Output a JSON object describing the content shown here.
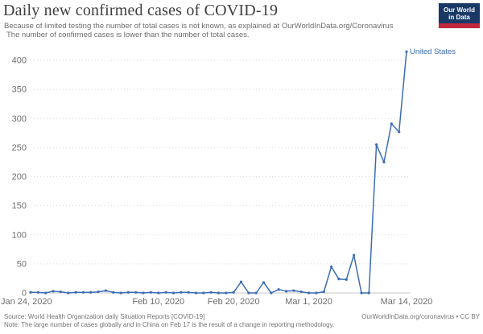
{
  "header": {
    "title": "Daily new confirmed cases of COVID-19",
    "subtitle_line1": "Because of limited testing the number of total cases is not known, as explained at OurWorldInData.org/Coronavirus",
    "subtitle_line2": "The number of confirmed cases is lower than the number of total cases.",
    "logo": {
      "line1": "Our World",
      "line2": "in Data",
      "bg_color": "#1a3866",
      "bar_color": "#c0283c"
    }
  },
  "footer": {
    "source": "Source: World Health Organization daily Situation Reports [COVID-19]",
    "credit": "OurWorldInData.org/coronavirus • CC BY",
    "note": "Note: The large number of cases globally and in China on Feb 17 is the result of a change in reporting methodology."
  },
  "chart_data": {
    "type": "line",
    "title": "Daily new confirmed cases of COVID-19",
    "end_label": "United States",
    "grid": "horizontal dotted",
    "legend": "end-of-line label",
    "ylim": [
      0,
      420
    ],
    "y_ticks": [
      0,
      50,
      100,
      150,
      200,
      250,
      300,
      350,
      400
    ],
    "x_ticks": [
      {
        "label": "Jan 24, 2020",
        "index": 0
      },
      {
        "label": "Feb 10, 2020",
        "index": 17
      },
      {
        "label": "Feb 20, 2020",
        "index": 27
      },
      {
        "label": "Mar 1, 2020",
        "index": 37
      },
      {
        "label": "Mar 14, 2020",
        "index": 50
      }
    ],
    "x": [
      "Jan 24",
      "Jan 25",
      "Jan 26",
      "Jan 27",
      "Jan 28",
      "Jan 29",
      "Jan 30",
      "Jan 31",
      "Feb 1",
      "Feb 2",
      "Feb 3",
      "Feb 4",
      "Feb 5",
      "Feb 6",
      "Feb 7",
      "Feb 8",
      "Feb 9",
      "Feb 10",
      "Feb 11",
      "Feb 12",
      "Feb 13",
      "Feb 14",
      "Feb 15",
      "Feb 16",
      "Feb 17",
      "Feb 18",
      "Feb 19",
      "Feb 20",
      "Feb 21",
      "Feb 22",
      "Feb 23",
      "Feb 24",
      "Feb 25",
      "Feb 26",
      "Feb 27",
      "Feb 28",
      "Feb 29",
      "Mar 1",
      "Mar 2",
      "Mar 3",
      "Mar 4",
      "Mar 5",
      "Mar 6",
      "Mar 7",
      "Mar 8",
      "Mar 9",
      "Mar 10",
      "Mar 11",
      "Mar 12",
      "Mar 13",
      "Mar 14"
    ],
    "series": [
      {
        "name": "United States",
        "color": "#3d6cb4",
        "values": [
          1,
          1,
          0,
          3,
          2,
          0,
          1,
          1,
          1,
          2,
          4,
          1,
          0,
          1,
          1,
          0,
          1,
          0,
          1,
          0,
          1,
          1,
          0,
          0,
          1,
          0,
          0,
          1,
          19,
          0,
          0,
          18,
          0,
          6,
          3,
          4,
          2,
          0,
          0,
          2,
          45,
          24,
          23,
          65,
          0,
          0,
          255,
          225,
          291,
          277,
          415
        ]
      }
    ],
    "colors": {
      "axis_text": "#6e6e6e",
      "grid": "#d9d9d9",
      "baseline": "#c9c9c9"
    }
  }
}
